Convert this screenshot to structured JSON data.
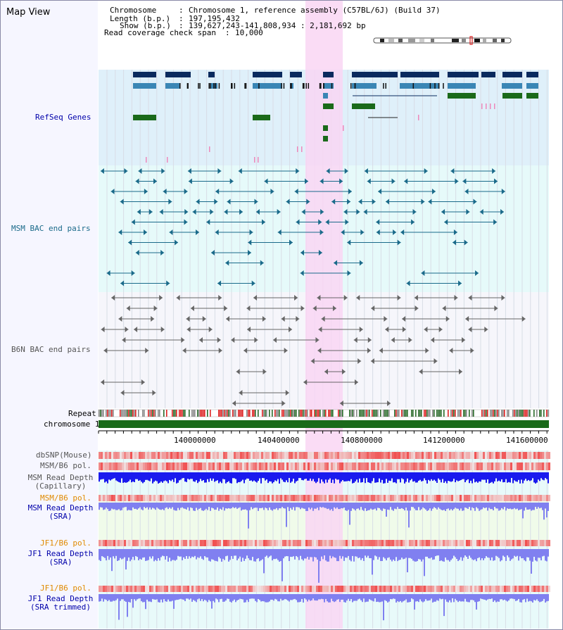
{
  "view": {
    "title": "Map View",
    "info": {
      "chromosome_key": "Chromosome",
      "chromosome_val": "Chromosome 1, reference assembly (C57BL/6J) (Build 37)",
      "length_key": "Length (b.p.)",
      "length_val": "197,195,432",
      "show_key": "Show (b.p.)",
      "show_val": "139,627,243-141,808,934 : 2,181,692 bp",
      "coverage_key": "Read coverage check span",
      "coverage_val": "10,000"
    }
  },
  "tracks": {
    "refseq": "RefSeq Genes",
    "msm_bac": "MSM BAC end pairs",
    "b6n_bac": "B6N BAC end pairs",
    "repeat": "Repeat",
    "chromosome": "chromosome 1",
    "dbsnp": "dbSNP(Mouse)",
    "msm_pol": "MSM/B6 pol.",
    "msm_depth_cap_1": "MSM Read Depth",
    "msm_depth_cap_2": "(Capillary)",
    "msm_pol2": "MSM/B6 pol.",
    "msm_depth_sra_1": "MSM Read Depth",
    "msm_depth_sra_2": "(SRA)",
    "jf1_pol": "JF1/B6 pol.",
    "jf1_depth_sra_1": "JF1 Read Depth",
    "jf1_depth_sra_2": "(SRA)",
    "jf1_pol2": "JF1/B6 pol.",
    "jf1_depth_trim_1": "JF1 Read Depth",
    "jf1_depth_trim_2": "(SRA trimmed)"
  },
  "axis": {
    "ticks": [
      "140000000",
      "140400000",
      "140800000",
      "141200000",
      "141600000"
    ]
  },
  "colors": {
    "refseq_bg": "#dff0fa",
    "msm_bg": "#e6fafa",
    "b6n_bg": "#f6f6fb",
    "highlight": "#f9d6f3",
    "gene_dark": "#0a2a5e",
    "gene_mid": "#3a86b5",
    "gene_green": "#1a6a1a",
    "msm_line": "#1a6a8a",
    "b6n_line": "#666666",
    "chromosome": "#1a6a1a",
    "depth_blue": "#1a1aee",
    "depth_light": "#8080f0",
    "pol_red": "#ee2222",
    "label_blue": "#0000aa",
    "label_orange": "#e08a00",
    "label_teal": "#2a5f7a"
  }
}
